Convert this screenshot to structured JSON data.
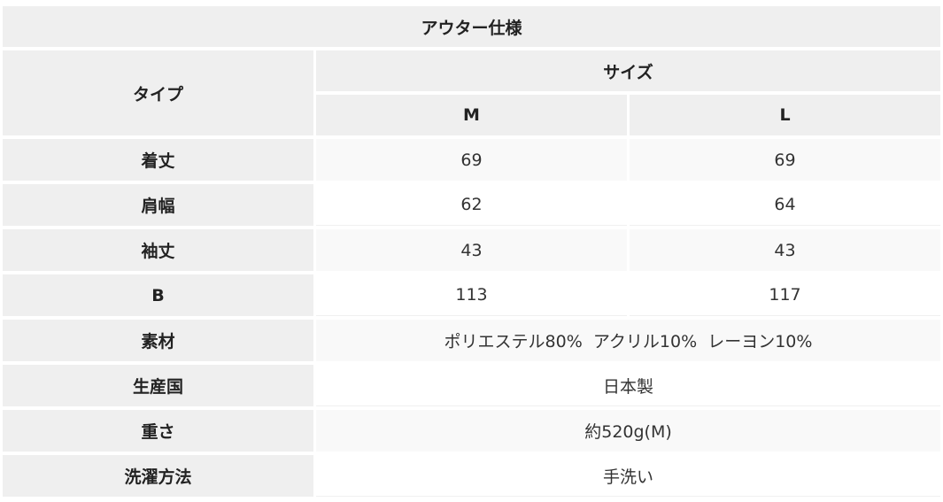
{
  "table": {
    "title": "アウター仕様",
    "type_header": "タイプ",
    "size_header": "サイズ",
    "sizes": [
      "M",
      "L"
    ],
    "size_rows": [
      {
        "label": "着丈",
        "m": "69",
        "l": "69"
      },
      {
        "label": "肩幅",
        "m": "62",
        "l": "64"
      },
      {
        "label": "袖丈",
        "m": "43",
        "l": "43"
      },
      {
        "label": "B",
        "m": "113",
        "l": "117"
      }
    ],
    "info_rows": [
      {
        "label": "素材",
        "value": "ポリエステル80%  アクリル10%  レーヨン10%"
      },
      {
        "label": "生産国",
        "value": "日本製"
      },
      {
        "label": "重さ",
        "value": "約520g(M)"
      },
      {
        "label": "洗濯方法",
        "value": "手洗い"
      }
    ]
  }
}
